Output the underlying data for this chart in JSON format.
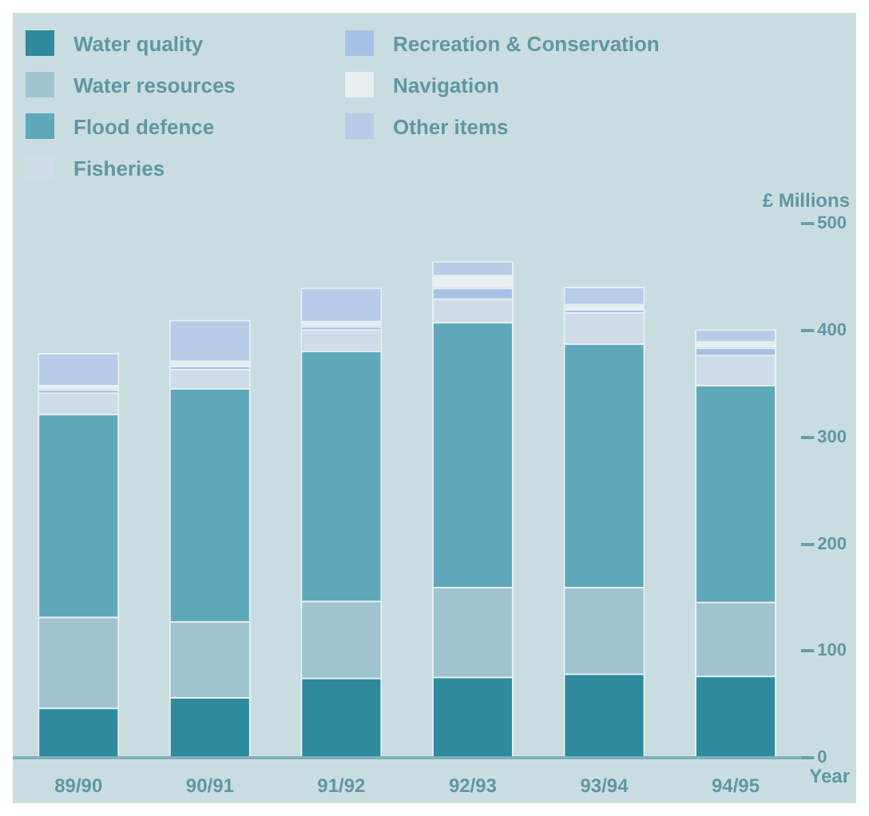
{
  "chart_data": {
    "type": "bar",
    "stacked": true,
    "xlabel": "Year",
    "ylabel": "£ Millions",
    "categories": [
      "89/90",
      "90/91",
      "91/92",
      "92/93",
      "93/94",
      "94/95"
    ],
    "series": [
      {
        "name": "Water quality",
        "color": "#2e8a9c",
        "values": [
          47,
          57,
          75,
          76,
          79,
          77
        ]
      },
      {
        "name": "Water resources",
        "color": "#9fc4cf",
        "values": [
          85,
          71,
          72,
          84,
          81,
          69
        ]
      },
      {
        "name": "Flood defence",
        "color": "#5ea9b9",
        "values": [
          190,
          218,
          234,
          248,
          228,
          203
        ]
      },
      {
        "name": "Fisheries",
        "color": "#cfdce8",
        "values": [
          20,
          18,
          20,
          22,
          29,
          28
        ]
      },
      {
        "name": "Recreation & Conservation",
        "color": "#a7c0e6",
        "values": [
          3,
          3,
          3,
          10,
          3,
          7
        ]
      },
      {
        "name": "Navigation",
        "color": "#e8eef2",
        "values": [
          4,
          5,
          5,
          12,
          5,
          6
        ]
      },
      {
        "name": "Other items",
        "color": "#b8cbe8",
        "values": [
          30,
          38,
          31,
          13,
          16,
          11
        ]
      }
    ],
    "ylim": [
      0,
      500
    ],
    "yticks": [
      0,
      100,
      200,
      300,
      400,
      500
    ],
    "grid": false,
    "legend": "top left"
  }
}
